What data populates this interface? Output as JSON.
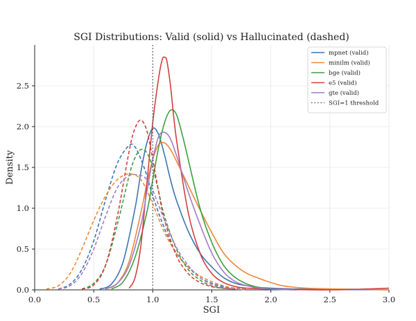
{
  "chart_data": {
    "type": "line",
    "title": "SGI Distributions: Valid (solid) vs Hallucinated (dashed)",
    "xlabel": "SGI",
    "ylabel": "Density",
    "xlim": [
      0.0,
      3.0
    ],
    "ylim": [
      0.0,
      3.0
    ],
    "xticks": [
      "0.0",
      "0.5",
      "1.0",
      "1.5",
      "2.0",
      "2.5",
      "3.0"
    ],
    "yticks": [
      "0.0",
      "0.5",
      "1.0",
      "1.5",
      "2.0",
      "2.5"
    ],
    "grid": true,
    "legend_position": "top-right",
    "threshold": {
      "x": 1.0,
      "label": "SGI=1 threshold",
      "color": "#555555"
    },
    "series": [
      {
        "name": "mpnet (valid)",
        "color": "#3b75af",
        "style": "solid",
        "x": [
          0.55,
          0.65,
          0.75,
          0.85,
          0.9,
          0.95,
          1.0,
          1.05,
          1.1,
          1.15,
          1.2,
          1.3,
          1.4,
          1.5,
          1.6,
          1.7,
          1.8,
          1.9,
          2.0,
          2.2,
          2.5,
          3.0
        ],
        "y": [
          0.01,
          0.07,
          0.35,
          1.0,
          1.45,
          1.8,
          1.98,
          1.9,
          1.65,
          1.35,
          1.1,
          0.72,
          0.45,
          0.28,
          0.15,
          0.08,
          0.05,
          0.03,
          0.02,
          0.01,
          0.005,
          0.0
        ]
      },
      {
        "name": "mpnet (hallucinated)",
        "color": "#3b75af",
        "style": "dashed",
        "x": [
          0.2,
          0.3,
          0.4,
          0.5,
          0.6,
          0.7,
          0.8,
          0.85,
          0.9,
          0.95,
          1.0,
          1.1,
          1.2,
          1.3,
          1.4,
          1.5,
          1.6,
          1.7,
          1.8
        ],
        "y": [
          0.01,
          0.07,
          0.25,
          0.6,
          1.1,
          1.55,
          1.77,
          1.75,
          1.6,
          1.4,
          1.15,
          0.75,
          0.45,
          0.28,
          0.15,
          0.08,
          0.04,
          0.02,
          0.01
        ]
      },
      {
        "name": "minilm (valid)",
        "color": "#ef8636",
        "style": "solid",
        "x": [
          0.6,
          0.7,
          0.8,
          0.9,
          0.95,
          1.0,
          1.05,
          1.1,
          1.15,
          1.2,
          1.3,
          1.4,
          1.5,
          1.6,
          1.7,
          1.8,
          1.9,
          2.0,
          2.1,
          2.3,
          2.6,
          3.0
        ],
        "y": [
          0.01,
          0.08,
          0.35,
          0.95,
          1.3,
          1.6,
          1.78,
          1.8,
          1.72,
          1.58,
          1.28,
          0.98,
          0.7,
          0.45,
          0.3,
          0.2,
          0.14,
          0.09,
          0.05,
          0.02,
          0.01,
          0.0
        ]
      },
      {
        "name": "minilm (hallucinated)",
        "color": "#ef8636",
        "style": "dashed",
        "x": [
          0.1,
          0.2,
          0.3,
          0.4,
          0.5,
          0.6,
          0.7,
          0.8,
          0.9,
          1.0,
          1.1,
          1.2,
          1.3,
          1.4,
          1.5,
          1.6,
          1.7,
          1.8
        ],
        "y": [
          0.01,
          0.05,
          0.2,
          0.5,
          0.85,
          1.15,
          1.35,
          1.42,
          1.35,
          1.05,
          0.7,
          0.45,
          0.28,
          0.17,
          0.1,
          0.05,
          0.02,
          0.01
        ]
      },
      {
        "name": "bge (valid)",
        "color": "#3d9e3d",
        "style": "solid",
        "x": [
          0.65,
          0.75,
          0.85,
          0.95,
          1.0,
          1.05,
          1.1,
          1.15,
          1.2,
          1.25,
          1.3,
          1.4,
          1.5,
          1.6,
          1.7,
          1.8,
          1.9,
          2.0,
          2.2
        ],
        "y": [
          0.01,
          0.1,
          0.4,
          0.95,
          1.35,
          1.75,
          2.05,
          2.2,
          2.15,
          1.9,
          1.6,
          1.0,
          0.58,
          0.3,
          0.15,
          0.07,
          0.03,
          0.01,
          0.0
        ]
      },
      {
        "name": "bge (hallucinated)",
        "color": "#3d9e3d",
        "style": "dashed",
        "x": [
          0.4,
          0.5,
          0.6,
          0.7,
          0.8,
          0.85,
          0.9,
          0.95,
          1.0,
          1.05,
          1.1,
          1.2,
          1.3,
          1.4,
          1.5,
          1.6,
          1.7
        ],
        "y": [
          0.01,
          0.08,
          0.3,
          0.8,
          1.4,
          1.62,
          1.72,
          1.68,
          1.5,
          1.2,
          0.9,
          0.5,
          0.25,
          0.12,
          0.05,
          0.02,
          0.01
        ]
      },
      {
        "name": "e5 (valid)",
        "color": "#d03e3f",
        "style": "solid",
        "x": [
          0.8,
          0.85,
          0.9,
          0.95,
          1.0,
          1.05,
          1.08,
          1.1,
          1.12,
          1.15,
          1.2,
          1.3,
          1.4,
          1.5,
          1.6,
          1.7,
          1.8,
          2.0,
          2.5,
          3.0
        ],
        "y": [
          0.02,
          0.15,
          0.55,
          1.3,
          2.05,
          2.6,
          2.82,
          2.85,
          2.8,
          2.5,
          1.85,
          0.95,
          0.45,
          0.2,
          0.09,
          0.04,
          0.02,
          0.01,
          0.0,
          0.02
        ]
      },
      {
        "name": "e5 (hallucinated)",
        "color": "#d03e3f",
        "style": "dashed",
        "x": [
          0.4,
          0.5,
          0.6,
          0.7,
          0.8,
          0.85,
          0.9,
          0.95,
          1.0,
          1.05,
          1.1,
          1.2,
          1.3,
          1.4,
          1.5,
          1.6,
          1.7
        ],
        "y": [
          0.01,
          0.06,
          0.3,
          0.9,
          1.7,
          1.98,
          2.08,
          1.95,
          1.6,
          1.2,
          0.85,
          0.42,
          0.2,
          0.09,
          0.04,
          0.02,
          0.01
        ]
      },
      {
        "name": "gte (valid)",
        "color": "#a27bc4",
        "style": "solid",
        "x": [
          0.6,
          0.7,
          0.8,
          0.9,
          0.95,
          1.0,
          1.05,
          1.1,
          1.15,
          1.2,
          1.3,
          1.4,
          1.5,
          1.6,
          1.7,
          1.8,
          1.9,
          2.0,
          2.2
        ],
        "y": [
          0.01,
          0.08,
          0.3,
          0.8,
          1.2,
          1.6,
          1.88,
          1.93,
          1.85,
          1.65,
          1.2,
          0.8,
          0.45,
          0.22,
          0.1,
          0.05,
          0.02,
          0.01,
          0.0
        ]
      },
      {
        "name": "gte (hallucinated)",
        "color": "#a27bc4",
        "style": "dashed",
        "x": [
          0.2,
          0.3,
          0.4,
          0.5,
          0.6,
          0.7,
          0.8,
          0.9,
          0.95,
          1.0,
          1.1,
          1.2,
          1.3,
          1.4,
          1.5,
          1.6,
          1.7,
          1.8
        ],
        "y": [
          0.01,
          0.05,
          0.2,
          0.5,
          0.9,
          1.25,
          1.4,
          1.4,
          1.35,
          1.22,
          0.85,
          0.52,
          0.3,
          0.15,
          0.07,
          0.03,
          0.01,
          0.0
        ]
      }
    ],
    "legend": [
      {
        "label": "mpnet (valid)",
        "color": "#3b75af",
        "style": "solid"
      },
      {
        "label": "minilm (valid)",
        "color": "#ef8636",
        "style": "solid"
      },
      {
        "label": "bge (valid)",
        "color": "#3d9e3d",
        "style": "solid"
      },
      {
        "label": "e5 (valid)",
        "color": "#d03e3f",
        "style": "solid"
      },
      {
        "label": "gte (valid)",
        "color": "#a27bc4",
        "style": "solid"
      },
      {
        "label": "SGI=1 threshold",
        "color": "#555555",
        "style": "dotted"
      }
    ]
  }
}
